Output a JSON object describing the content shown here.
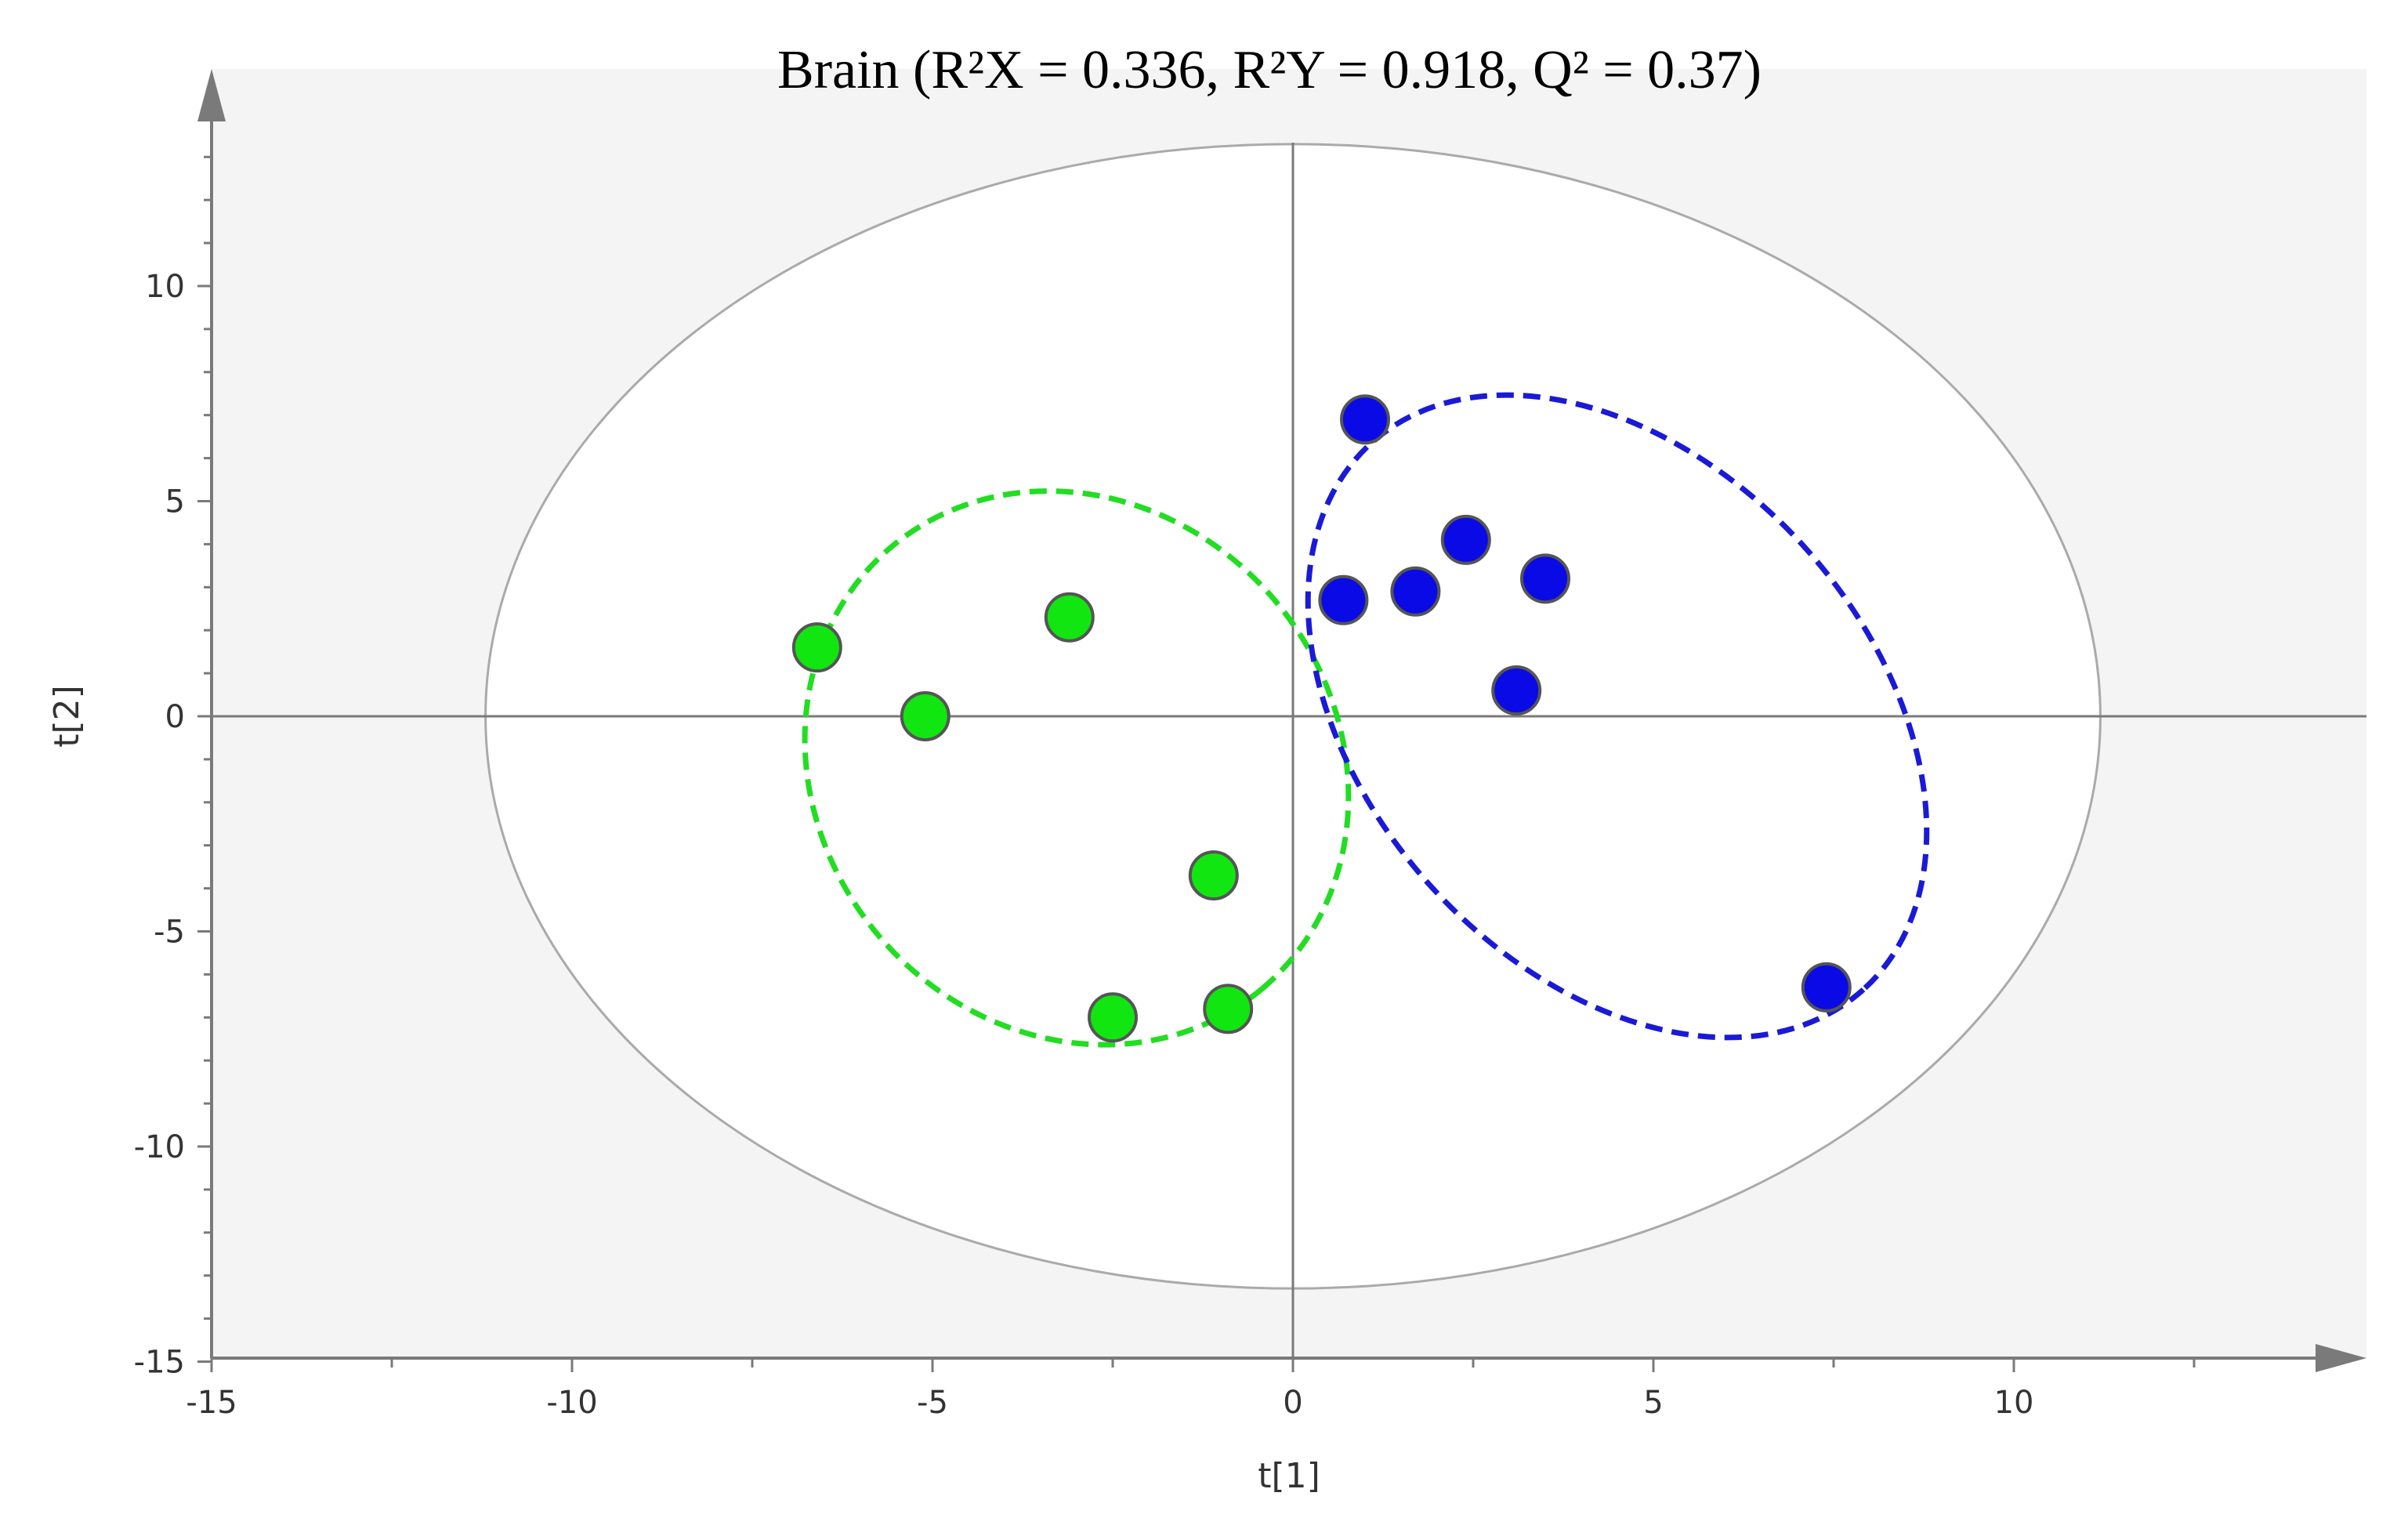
{
  "chart_data": {
    "type": "scatter",
    "title": "Brain (R²X = 0.336, R²Y = 0.918, Q² = 0.37)",
    "xlabel": "t[1]",
    "ylabel": "t[2]",
    "xlim": [
      -15,
      15
    ],
    "ylim": [
      -15,
      14
    ],
    "xticks": [
      -15,
      -10,
      -5,
      0,
      5,
      10
    ],
    "yticks": [
      -15,
      -10,
      -5,
      0,
      5,
      10
    ],
    "grid": false,
    "legend": "none",
    "hotelling_ellipse": {
      "cx": 0,
      "cy": 0,
      "rx": 11.2,
      "ry": 13.3,
      "color": "#aaaaaa"
    },
    "series": [
      {
        "color": "#11e611",
        "points": [
          {
            "x": -6.6,
            "y": 1.6
          },
          {
            "x": -5.1,
            "y": 0.0
          },
          {
            "x": -3.1,
            "y": 2.3
          },
          {
            "x": -1.1,
            "y": -3.7
          },
          {
            "x": -2.5,
            "y": -7.0
          },
          {
            "x": -0.9,
            "y": -6.8
          }
        ],
        "group_outline": {
          "cx": -3.0,
          "cy": -1.2,
          "rx": 8.0,
          "ry": 3.6,
          "angle_deg": 50,
          "color": "#22dd22",
          "dash": "dashed"
        }
      },
      {
        "color": "#0a0ae6",
        "points": [
          {
            "x": 1.0,
            "y": 6.9
          },
          {
            "x": 2.4,
            "y": 4.1
          },
          {
            "x": 1.7,
            "y": 2.9
          },
          {
            "x": 0.7,
            "y": 2.7
          },
          {
            "x": 3.5,
            "y": 3.2
          },
          {
            "x": 3.1,
            "y": 0.6
          },
          {
            "x": 7.4,
            "y": -6.3
          }
        ],
        "group_outline": {
          "cx": 4.5,
          "cy": 0.0,
          "rx": 10.2,
          "ry": 3.5,
          "angle_deg": 48,
          "color": "#1a1ad6",
          "dash": "dashed"
        }
      }
    ]
  }
}
